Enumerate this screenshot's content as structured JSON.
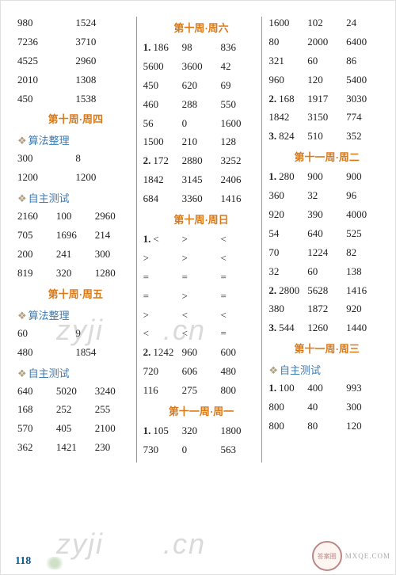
{
  "col1": {
    "r1": [
      "980",
      "1524"
    ],
    "r2": [
      "7236",
      "3710"
    ],
    "r3": [
      "4525",
      "2960"
    ],
    "r4": [
      "2010",
      "1308"
    ],
    "r5": [
      "450",
      "1538"
    ],
    "h1": "第十周·周四",
    "s1": "算法整理",
    "r6": [
      "300",
      "8"
    ],
    "r7": [
      "1200",
      "1200"
    ],
    "s2": "自主测试",
    "r8": [
      "2160",
      "100",
      "2960"
    ],
    "r9": [
      "705",
      "1696",
      "214"
    ],
    "r10": [
      "200",
      "241",
      "300"
    ],
    "r11": [
      "819",
      "320",
      "1280"
    ],
    "h2": "第十周·周五",
    "s3": "算法整理",
    "r12": [
      "60",
      "9"
    ],
    "r13": [
      "480",
      "1854"
    ],
    "s4": "自主测试",
    "r14": [
      "640",
      "5020",
      "3240"
    ],
    "r15": [
      "168",
      "252",
      "255"
    ],
    "r16": [
      "570",
      "405",
      "2100"
    ],
    "r17": [
      "362",
      "1421",
      "230"
    ]
  },
  "col2": {
    "h1": "第十周·周六",
    "n1": "1.",
    "r1": [
      "186",
      "98",
      "836"
    ],
    "r2": [
      "5600",
      "3600",
      "42"
    ],
    "r3": [
      "450",
      "620",
      "69"
    ],
    "r4": [
      "460",
      "288",
      "550"
    ],
    "r5": [
      "56",
      "0",
      "1600"
    ],
    "r6": [
      "1500",
      "210",
      "128"
    ],
    "n2": "2.",
    "r7": [
      "172",
      "2880",
      "3252"
    ],
    "r8": [
      "1842",
      "3145",
      "2406"
    ],
    "r9": [
      "684",
      "3360",
      "1416"
    ],
    "h2": "第十周·周日",
    "n3": "1.",
    "r10": [
      "<",
      ">",
      "<"
    ],
    "r11": [
      ">",
      ">",
      "<"
    ],
    "r12": [
      "=",
      "=",
      "="
    ],
    "r13": [
      "=",
      ">",
      "="
    ],
    "r14": [
      ">",
      "<",
      "<"
    ],
    "r15": [
      "<",
      "<",
      "="
    ],
    "n4": "2.",
    "r16": [
      "1242",
      "960",
      "600"
    ],
    "r17": [
      "720",
      "606",
      "480"
    ],
    "r18": [
      "116",
      "275",
      "800"
    ],
    "h3": "第十一周·周一",
    "n5": "1.",
    "r19": [
      "105",
      "320",
      "1800"
    ],
    "r20": [
      "730",
      "0",
      "563"
    ]
  },
  "col3": {
    "r1": [
      "1600",
      "102",
      "24"
    ],
    "r2": [
      "80",
      "2000",
      "6400"
    ],
    "r3": [
      "321",
      "60",
      "86"
    ],
    "r4": [
      "960",
      "120",
      "5400"
    ],
    "n1": "2.",
    "r5": [
      "168",
      "1917",
      "3030"
    ],
    "r6": [
      "1842",
      "3150",
      "774"
    ],
    "n2": "3.",
    "r7": [
      "824",
      "510",
      "352"
    ],
    "h1": "第十一周·周二",
    "n3": "1.",
    "r8": [
      "280",
      "900",
      "900"
    ],
    "r9": [
      "360",
      "32",
      "96"
    ],
    "r10": [
      "920",
      "390",
      "4000"
    ],
    "r11": [
      "54",
      "640",
      "525"
    ],
    "r12": [
      "70",
      "1224",
      "82"
    ],
    "r13": [
      "32",
      "60",
      "138"
    ],
    "n4": "2.",
    "r14": [
      "2800",
      "5628",
      "1416"
    ],
    "r15": [
      "380",
      "1872",
      "920"
    ],
    "n5": "3.",
    "r16": [
      "544",
      "1260",
      "1440"
    ],
    "h2": "第十一周·周三",
    "s1": "自主测试",
    "n6": "1.",
    "r17": [
      "100",
      "400",
      "993"
    ],
    "r18": [
      "800",
      "40",
      "300"
    ],
    "r19": [
      "800",
      "80",
      "120"
    ]
  },
  "pageNumber": "118",
  "badge": "答案圈",
  "mxe": "MXQE.COM"
}
